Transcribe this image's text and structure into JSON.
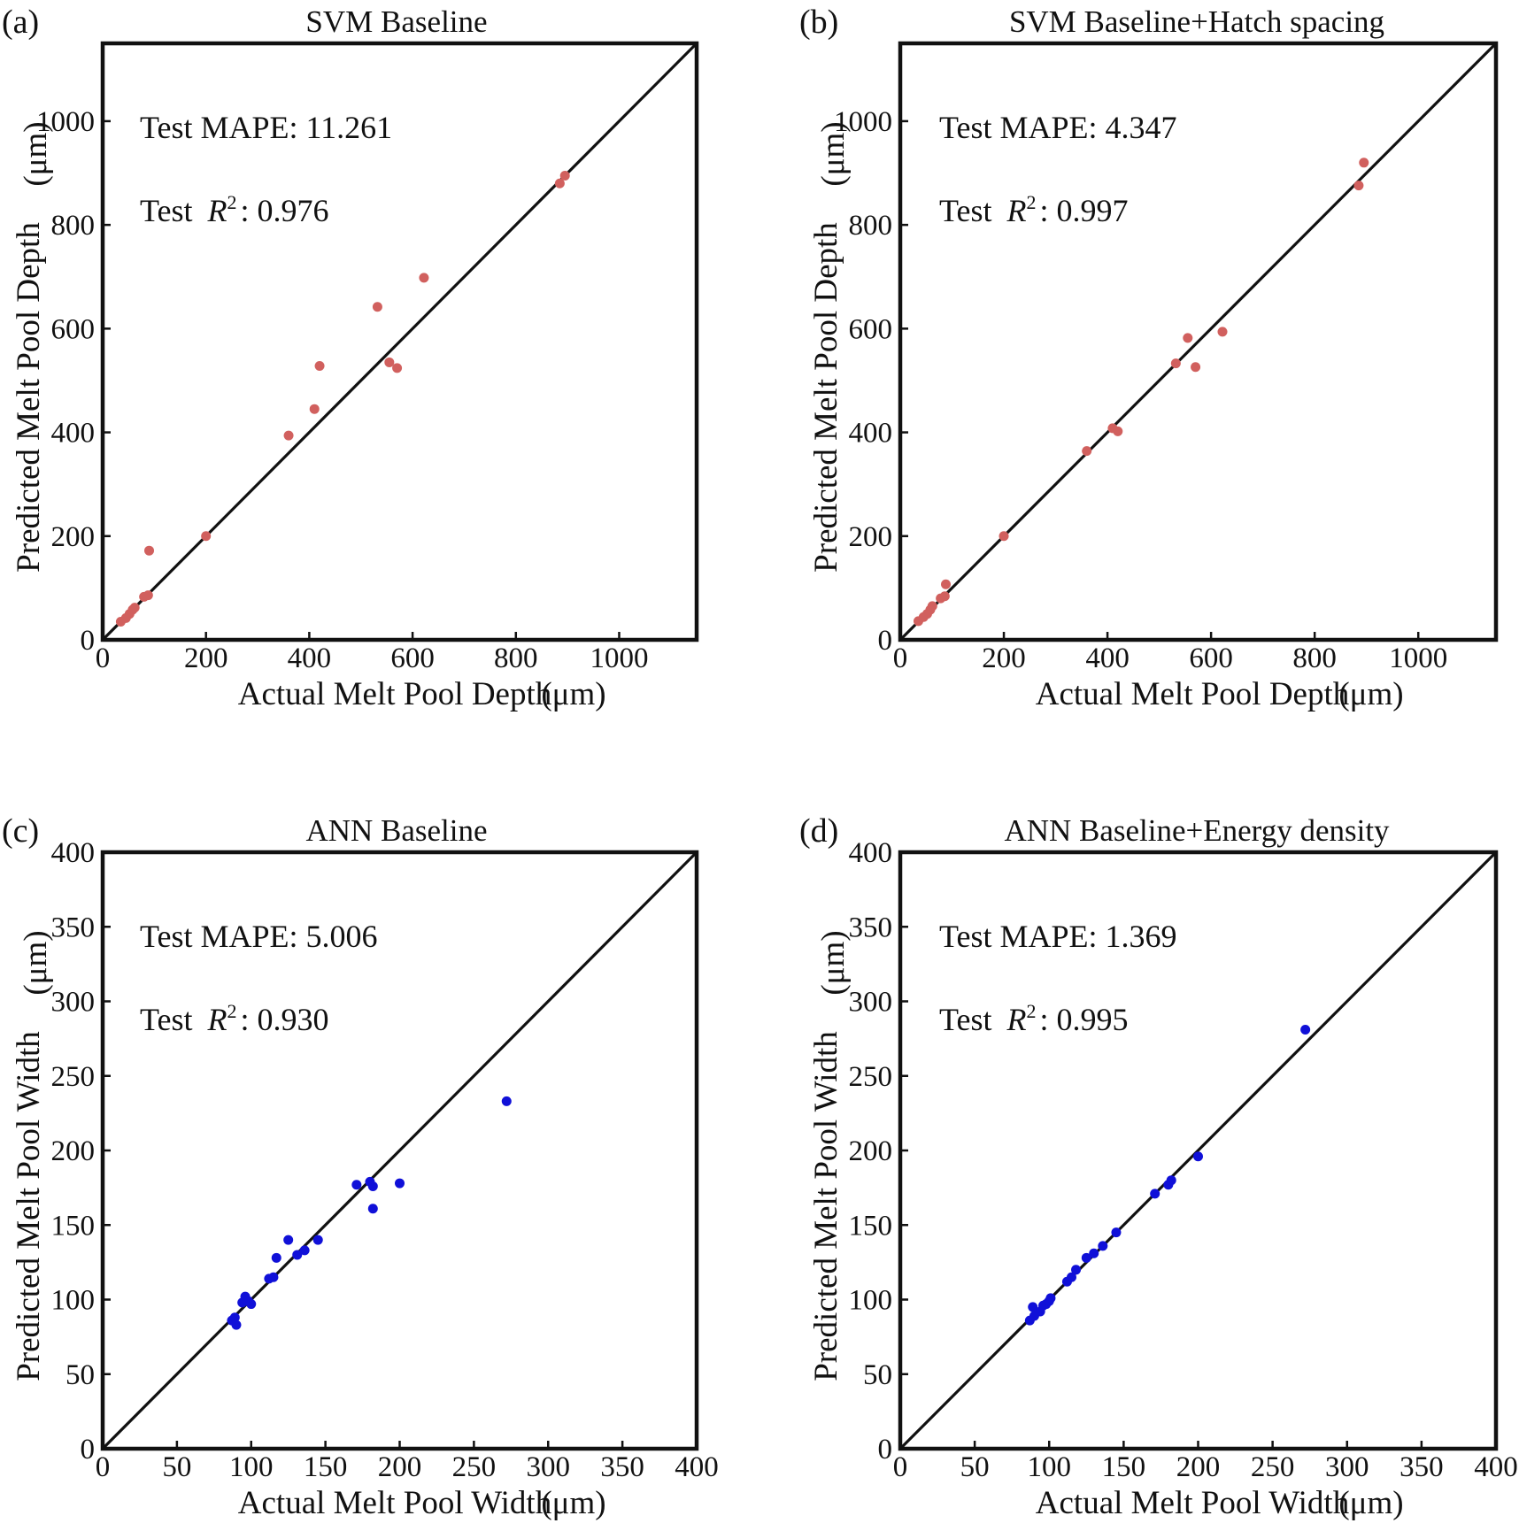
{
  "chart_data": [
    {
      "type": "scatter",
      "panel_label": "(a)",
      "title": "SVM Baseline",
      "xlabel": "Actual Melt Pool Depth",
      "ylabel": "Predicted Melt Pool Depth",
      "unit_label": "(μm)",
      "xlim": [
        0,
        1150
      ],
      "ylim": [
        0,
        1150
      ],
      "xticks": [
        0,
        200,
        400,
        600,
        800,
        1000
      ],
      "yticks": [
        0,
        200,
        400,
        600,
        800,
        1000
      ],
      "reference_line": "y = x",
      "grid": false,
      "annotation_mape": "Test MAPE: 11.261",
      "annotation_r2_prefix": "Test ",
      "annotation_r2_symbol": "R",
      "annotation_r2_superscript": "2",
      "annotation_r2_value": ": 0.976",
      "point_color": "#d1605e",
      "series": [
        {
          "x": [
            35,
            45,
            52,
            58,
            62,
            80,
            88,
            90,
            200,
            360,
            410,
            420,
            532,
            555,
            570,
            622,
            885,
            895
          ],
          "y": [
            35,
            42,
            50,
            58,
            62,
            83,
            86,
            172,
            200,
            394,
            445,
            528,
            642,
            535,
            524,
            698,
            880,
            895
          ]
        }
      ]
    },
    {
      "type": "scatter",
      "panel_label": "(b)",
      "title": "SVM Baseline+Hatch spacing",
      "xlabel": "Actual Melt Pool Depth",
      "ylabel": "Predicted Melt Pool Depth",
      "unit_label": "(μm)",
      "xlim": [
        0,
        1150
      ],
      "ylim": [
        0,
        1150
      ],
      "xticks": [
        0,
        200,
        400,
        600,
        800,
        1000
      ],
      "yticks": [
        0,
        200,
        400,
        600,
        800,
        1000
      ],
      "reference_line": "y = x",
      "grid": false,
      "annotation_mape": "Test MAPE: 4.347",
      "annotation_r2_prefix": "Test ",
      "annotation_r2_symbol": "R",
      "annotation_r2_superscript": "2",
      "annotation_r2_value": ": 0.997",
      "point_color": "#d1605e",
      "series": [
        {
          "x": [
            35,
            45,
            52,
            58,
            62,
            78,
            86,
            88,
            200,
            360,
            410,
            420,
            532,
            555,
            570,
            622,
            885,
            895
          ],
          "y": [
            36,
            44,
            50,
            58,
            65,
            80,
            84,
            107,
            200,
            364,
            408,
            402,
            533,
            582,
            526,
            594,
            876,
            920
          ]
        }
      ]
    },
    {
      "type": "scatter",
      "panel_label": "(c)",
      "title": "ANN Baseline",
      "xlabel": "Actual Melt Pool Width",
      "ylabel": "Predicted Melt Pool Width",
      "unit_label": "(μm)",
      "xlim": [
        0,
        400
      ],
      "ylim": [
        0,
        400
      ],
      "xticks": [
        0,
        50,
        100,
        150,
        200,
        250,
        300,
        350,
        400
      ],
      "yticks": [
        0,
        50,
        100,
        150,
        200,
        250,
        300,
        350,
        400
      ],
      "reference_line": "y = x",
      "grid": false,
      "annotation_mape": "Test MAPE: 5.006",
      "annotation_r2_prefix": "Test ",
      "annotation_r2_symbol": "R",
      "annotation_r2_superscript": "2",
      "annotation_r2_value": ": 0.930",
      "point_color": "#1010d8",
      "series": [
        {
          "x": [
            87,
            89,
            90,
            94,
            96,
            98,
            100,
            112,
            115,
            117,
            125,
            131,
            136,
            145,
            171,
            180,
            182,
            182,
            200,
            272
          ],
          "y": [
            86,
            88,
            83,
            98,
            102,
            99,
            97,
            114,
            115,
            128,
            140,
            130,
            133,
            140,
            177,
            179,
            176,
            161,
            178,
            233
          ]
        }
      ]
    },
    {
      "type": "scatter",
      "panel_label": "(d)",
      "title": "ANN Baseline+Energy density",
      "xlabel": "Actual Melt Pool Width",
      "ylabel": "Predicted Melt Pool Width",
      "unit_label": "(μm)",
      "xlim": [
        0,
        400
      ],
      "ylim": [
        0,
        400
      ],
      "xticks": [
        0,
        50,
        100,
        150,
        200,
        250,
        300,
        350,
        400
      ],
      "yticks": [
        0,
        50,
        100,
        150,
        200,
        250,
        300,
        350,
        400
      ],
      "reference_line": "y = x",
      "grid": false,
      "annotation_mape": "Test MAPE: 1.369",
      "annotation_r2_prefix": "Test ",
      "annotation_r2_symbol": "R",
      "annotation_r2_superscript": "2",
      "annotation_r2_value": ": 0.995",
      "point_color": "#1010d8",
      "series": [
        {
          "x": [
            87,
            89,
            90,
            94,
            96,
            98,
            100,
            101,
            112,
            115,
            118,
            125,
            130,
            136,
            145,
            171,
            180,
            182,
            200,
            272
          ],
          "y": [
            86,
            95,
            89,
            92,
            96,
            97,
            99,
            101,
            112,
            115,
            120,
            128,
            131,
            136,
            145,
            171,
            177,
            180,
            196,
            281
          ]
        }
      ]
    }
  ]
}
